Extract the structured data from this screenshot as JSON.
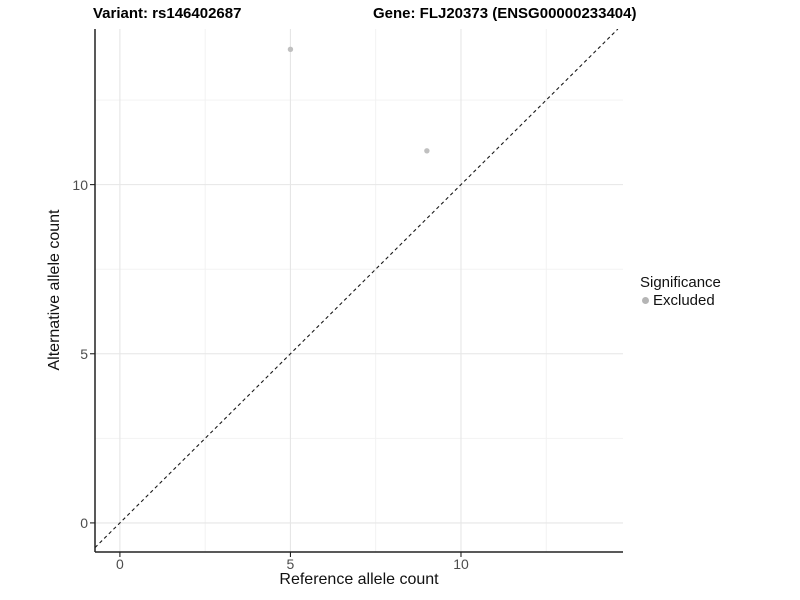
{
  "chart_data": {
    "type": "scatter",
    "title": {
      "variant": "Variant: rs146402687",
      "gene": "Gene: FLJ20373 (ENSG00000233404)"
    },
    "xlabel": "Reference allele count",
    "ylabel": "Alternative allele count",
    "xlim": [
      -0.73,
      14.75
    ],
    "ylim": [
      -0.86,
      14.6
    ],
    "x_ticks": [
      0,
      5,
      10
    ],
    "y_ticks": [
      0,
      5,
      10
    ],
    "x_minor_ticks": [
      2.5,
      7.5,
      12.5
    ],
    "y_minor_ticks": [
      2.5,
      7.5,
      12.5
    ],
    "grid": true,
    "legend_position": "right",
    "series": [
      {
        "name": "Excluded",
        "points": [
          {
            "x": 5,
            "y": 14
          },
          {
            "x": 9,
            "y": 11
          }
        ]
      }
    ],
    "reference_line": {
      "kind": "identity",
      "equation": "y = x",
      "style": "dashed"
    },
    "legend": {
      "title": "Significance",
      "items": [
        {
          "label": "Excluded",
          "color": "#bdbdbd",
          "marker": "dot-icon"
        }
      ]
    }
  },
  "colors": {
    "background": "#ffffff",
    "point": "#c0c0c0",
    "legend_point": "#b5b5b5",
    "grid_major": "#e6e6e6",
    "grid_minor": "#f1f1f1",
    "axis_line": "#222222",
    "dashed_line": "#1a1a1a",
    "tick_text": "#4d4d4d",
    "title_text": "#000000"
  }
}
